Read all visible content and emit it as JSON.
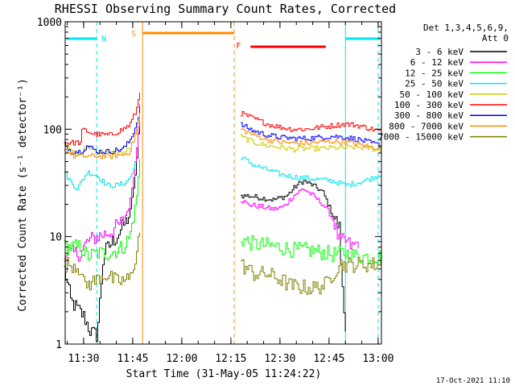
{
  "chart_data": {
    "type": "line",
    "title": "RHESSI Observing Summary Count Rates, Corrected",
    "xlabel": "Start Time (31-May-05 11:24:22)",
    "ylabel": "Corrected Count Rate (s⁻¹ detector⁻¹)",
    "y_scale": "log",
    "ylim": [
      1,
      1000
    ],
    "xlim": [
      "11:24:22",
      "13:01"
    ],
    "x_ticks": [
      "11:30",
      "11:45",
      "12:00",
      "12:15",
      "12:30",
      "12:45",
      "13:00"
    ],
    "y_ticks": [
      "1",
      "10",
      "100",
      "1000"
    ],
    "grid": false,
    "legend_position": "right",
    "legend_header": [
      "Det 1,3,4,5,6,9,",
      "Att 0"
    ],
    "timestamp": "17-Oct-2021 11:10",
    "flags": [
      {
        "label": "N",
        "color": "#00e5ee",
        "intervals": [
          [
            "11:24",
            "11:34"
          ],
          [
            "12:50",
            "13:01"
          ]
        ]
      },
      {
        "label": "S",
        "color": "#ff8c00",
        "intervals": [
          [
            "11:48",
            "12:16"
          ]
        ]
      },
      {
        "label": "F",
        "color": "#ff0000",
        "intervals": [
          [
            "12:21",
            "12:44"
          ]
        ]
      }
    ],
    "markers": [
      {
        "time": "11:34",
        "color": "#00e5ee",
        "style": "dashed"
      },
      {
        "time": "11:48",
        "color": "#ff8c00",
        "style": "solid"
      },
      {
        "time": "12:16",
        "color": "#ff8c00",
        "style": "dashed"
      },
      {
        "time": "12:50",
        "color": "#00e5ee",
        "style": "solid"
      },
      {
        "time": "13:00",
        "color": "#00e5ee",
        "style": "dashed"
      }
    ],
    "series": [
      {
        "name": "3 - 6 keV",
        "color": "#000000",
        "segments": [
          {
            "t": [
              "11:24",
              "11:26",
              "11:30",
              "11:32",
              "11:34",
              "11:36",
              "11:40",
              "11:44",
              "11:46",
              "11:47:30"
            ],
            "v": [
              5,
              2.5,
              1.8,
              1.3,
              1.2,
              7,
              10,
              16,
              45,
              230
            ]
          },
          {
            "t": [
              "12:18",
              "12:20",
              "12:24",
              "12:28",
              "12:32",
              "12:35",
              "12:37",
              "12:40",
              "12:43",
              "12:46",
              "12:48",
              "12:49",
              "12:50"
            ],
            "v": [
              24,
              24,
              23,
              22,
              24,
              30,
              33,
              30,
              26,
              16,
              12,
              3,
              1.3
            ]
          }
        ]
      },
      {
        "name": "6 - 12 keV",
        "color": "#ff00ff",
        "segments": [
          {
            "t": [
              "11:24",
              "11:29",
              "11:31",
              "11:34",
              "11:38",
              "11:42",
              "11:44",
              "11:46",
              "11:47:30"
            ],
            "v": [
              7,
              7,
              9,
              10,
              11,
              14,
              20,
              60,
              260
            ]
          },
          {
            "t": [
              "12:18",
              "12:20",
              "12:24",
              "12:28",
              "12:31",
              "12:34",
              "12:37",
              "12:40",
              "12:43",
              "12:46",
              "12:48",
              "12:50",
              "12:52",
              "12:54"
            ],
            "v": [
              22,
              20,
              19,
              18,
              19,
              24,
              28,
              24,
              20,
              15,
              9,
              9,
              8,
              9
            ]
          }
        ]
      },
      {
        "name": "12 - 25 keV",
        "color": "#00ff00",
        "segments": [
          {
            "t": [
              "11:24",
              "11:29",
              "11:31",
              "11:34",
              "11:38",
              "11:42",
              "11:44",
              "11:46",
              "11:47:30"
            ],
            "v": [
              8,
              8,
              6.5,
              7,
              7,
              8,
              10,
              22,
              70
            ]
          },
          {
            "t": [
              "12:18",
              "12:22",
              "12:26",
              "12:30",
              "12:34",
              "12:38",
              "12:42",
              "12:46",
              "12:48",
              "12:50",
              "12:54",
              "12:58",
              "13:01"
            ],
            "v": [
              9.5,
              8.5,
              8.3,
              8,
              7.5,
              7.5,
              7.2,
              6.8,
              7,
              7,
              6.5,
              6.5,
              6.5
            ]
          }
        ]
      },
      {
        "name": "25 - 50 keV",
        "color": "#00e5ee",
        "segments": [
          {
            "t": [
              "11:24",
              "11:26",
              "11:28",
              "11:31",
              "11:34",
              "11:37",
              "11:40",
              "11:43",
              "11:45",
              "11:46"
            ],
            "v": [
              40,
              32,
              28,
              40,
              37,
              30,
              30,
              32,
              40,
              55
            ]
          },
          {
            "t": [
              "12:18",
              "12:22",
              "12:26",
              "12:30",
              "12:34",
              "12:38",
              "12:42",
              "12:46",
              "12:50",
              "12:54",
              "12:58",
              "13:01"
            ],
            "v": [
              55,
              46,
              42,
              38,
              36,
              35,
              34,
              33,
              30,
              32,
              35,
              38
            ]
          }
        ]
      },
      {
        "name": "50 - 100 keV",
        "color": "#cccc00",
        "segments": [
          {
            "t": [
              "11:24",
              "11:26",
              "11:29",
              "11:31",
              "11:34",
              "11:38",
              "11:42",
              "11:44",
              "11:45:30"
            ],
            "v": [
              75,
              62,
              58,
              70,
              62,
              60,
              60,
              66,
              80
            ]
          },
          {
            "t": [
              "12:18",
              "12:22",
              "12:26",
              "12:30",
              "12:34",
              "12:38",
              "12:42",
              "12:46",
              "12:50",
              "12:54",
              "12:58",
              "13:01"
            ],
            "v": [
              85,
              75,
              70,
              68,
              65,
              66,
              66,
              67,
              67,
              68,
              66,
              63
            ]
          }
        ]
      },
      {
        "name": "100 - 300 keV",
        "color": "#ff0000",
        "segments": [
          {
            "t": [
              "11:24",
              "11:29",
              "11:29:30",
              "11:33",
              "11:38",
              "11:42",
              "11:44",
              "11:46",
              "11:47:30"
            ],
            "v": [
              75,
              75,
              100,
              90,
              88,
              100,
              110,
              150,
              260
            ]
          },
          {
            "t": [
              "12:18",
              "12:22",
              "12:26",
              "12:30",
              "12:34",
              "12:38",
              "12:42",
              "12:46",
              "12:50",
              "12:54",
              "12:58",
              "13:01"
            ],
            "v": [
              140,
              125,
              112,
              104,
              100,
              100,
              104,
              108,
              112,
              108,
              100,
              95
            ]
          }
        ]
      },
      {
        "name": "300 - 800 keV",
        "color": "#0000ff",
        "segments": [
          {
            "t": [
              "11:24",
              "11:26",
              "11:29",
              "11:31",
              "11:34",
              "11:38",
              "11:42",
              "11:44",
              "11:46",
              "11:47:30"
            ],
            "v": [
              72,
              62,
              62,
              70,
              62,
              62,
              66,
              78,
              110,
              180
            ]
          },
          {
            "t": [
              "12:18",
              "12:22",
              "12:26",
              "12:30",
              "12:34",
              "12:38",
              "12:42",
              "12:46",
              "12:50",
              "12:54",
              "12:58",
              "13:01"
            ],
            "v": [
              110,
              96,
              88,
              84,
              82,
              82,
              84,
              86,
              84,
              80,
              74,
              70
            ]
          }
        ]
      },
      {
        "name": "800 - 7000 keV",
        "color": "#ff8c00",
        "segments": [
          {
            "t": [
              "11:24",
              "11:27",
              "11:30",
              "11:34",
              "11:38",
              "11:42",
              "11:44",
              "11:46",
              "11:47:30"
            ],
            "v": [
              66,
              56,
              56,
              56,
              56,
              58,
              62,
              95,
              160
            ]
          },
          {
            "t": [
              "12:18",
              "12:22",
              "12:26",
              "12:30",
              "12:34",
              "12:38",
              "12:42",
              "12:46",
              "12:50",
              "12:54",
              "12:58",
              "13:01"
            ],
            "v": [
              100,
              88,
              80,
              76,
              74,
              74,
              76,
              77,
              76,
              72,
              68,
              66
            ]
          }
        ]
      },
      {
        "name": "7000 - 15000 keV",
        "color": "#808000",
        "segments": [
          {
            "t": [
              "11:24",
              "11:27",
              "11:29",
              "11:30",
              "11:33",
              "11:36",
              "11:40",
              "11:44",
              "11:46",
              "11:47:30"
            ],
            "v": [
              5.5,
              5.5,
              5,
              3.5,
              3.8,
              4.5,
              3.8,
              4,
              7,
              14
            ]
          },
          {
            "t": [
              "12:18",
              "12:22",
              "12:26",
              "12:30",
              "12:33",
              "12:36",
              "12:40",
              "12:44",
              "12:46",
              "12:48",
              "12:50",
              "12:54",
              "12:58",
              "13:01"
            ],
            "v": [
              5.5,
              4.5,
              4.5,
              4,
              3.5,
              3.4,
              3.3,
              3.6,
              4.5,
              5.5,
              5.5,
              5.5,
              5.5,
              5.5
            ]
          }
        ]
      }
    ]
  }
}
